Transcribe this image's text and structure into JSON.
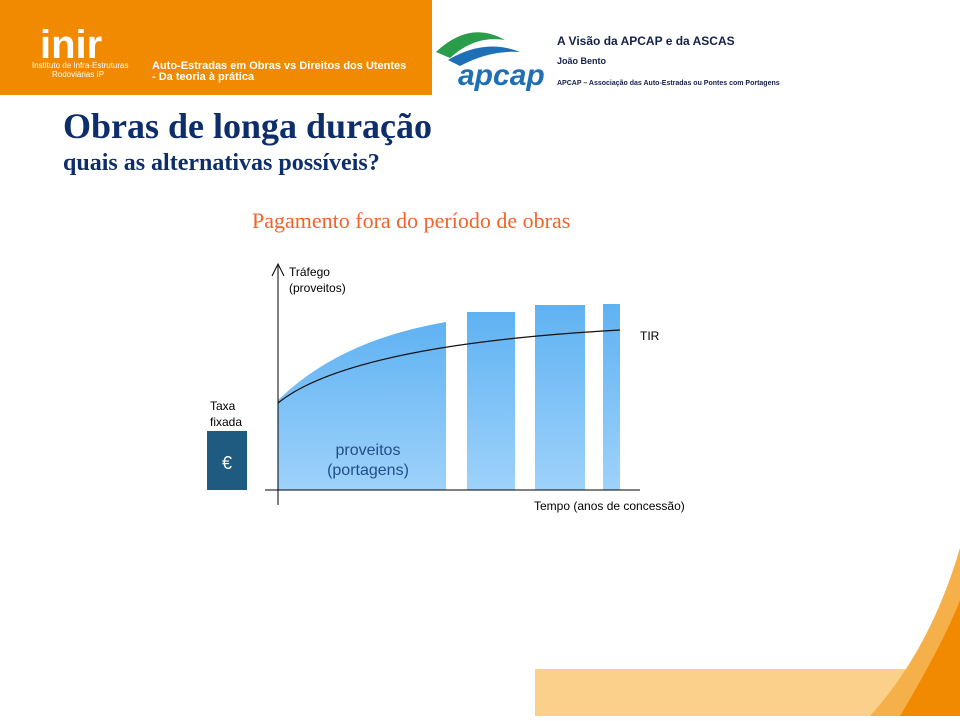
{
  "header": {
    "logo": "inir",
    "institute": [
      "Instituto de Infra-Estruturas",
      "Rodoviárias IP"
    ],
    "event": [
      "Auto-Estradas em Obras vs Direitos dos Utentes",
      "- Da teoria à prática"
    ],
    "apcap_logo": "apcap",
    "talk_title": "A Visão da APCAP e da ASCAS",
    "speaker": "João Bento",
    "organization": "APCAP – Associação das Auto-Estradas ou Pontes com Portagens"
  },
  "slide": {
    "title": "Obras de longa duração",
    "subtitle": "quais as alternativas possíveis?",
    "heading": "Pagamento fora do período de obras"
  },
  "diagram": {
    "y_axis_label": [
      "Tráfego",
      "(proveitos)"
    ],
    "curve_label": "TIR",
    "fixed_rate_label": [
      "Taxa",
      "fixada"
    ],
    "fixed_rate_symbol": "€",
    "area_label": [
      "proveitos",
      "(portagens)"
    ],
    "x_axis_label": "Tempo (anos de concessão)"
  }
}
